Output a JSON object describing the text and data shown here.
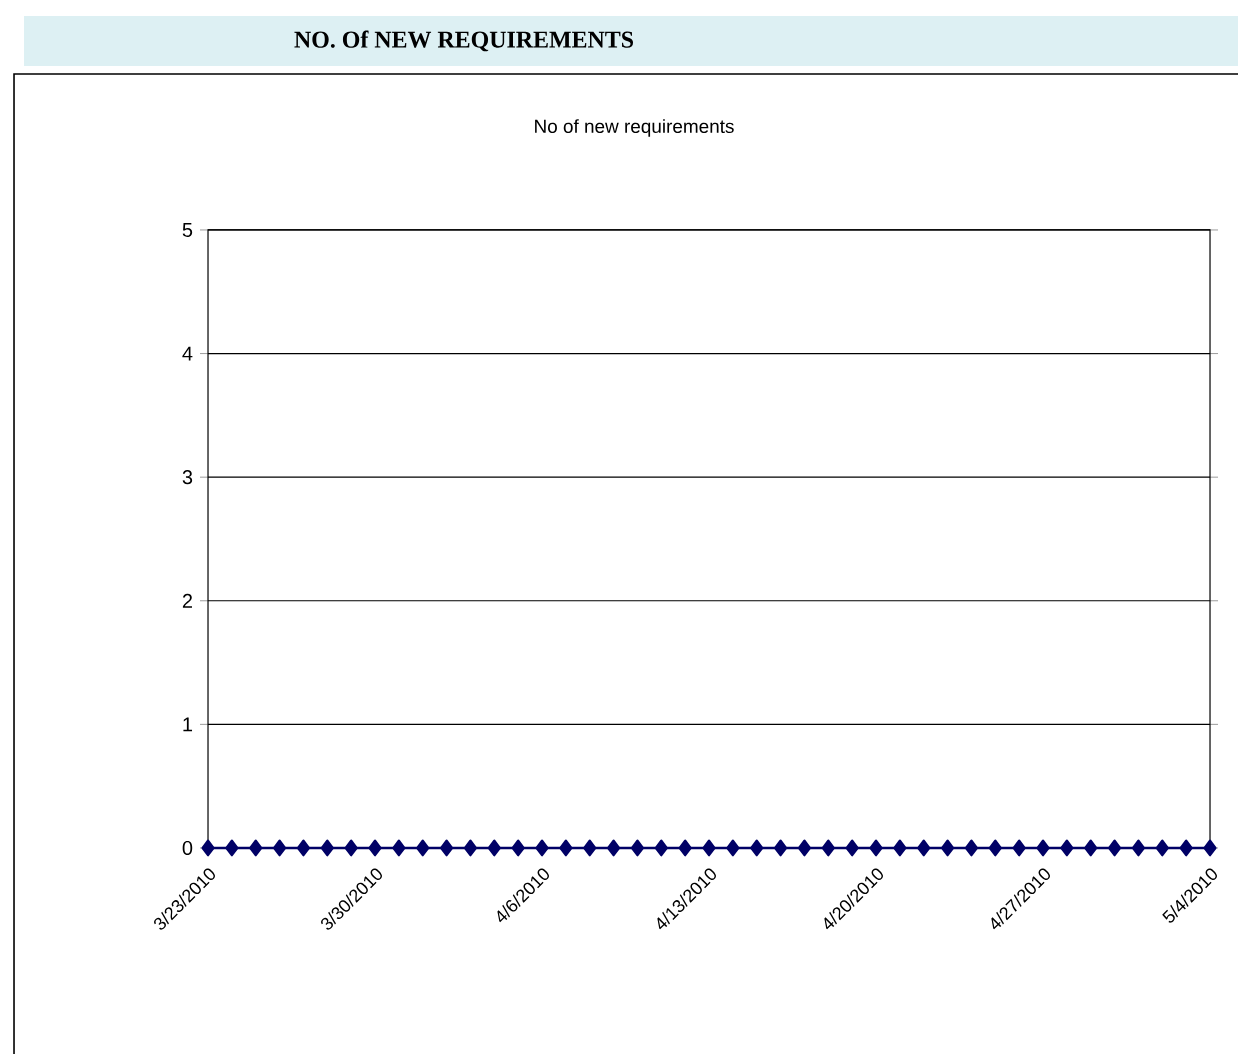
{
  "chart_data": {
    "type": "line",
    "title": "NO. Of NEW REQUIREMENTS",
    "subtitle": "No of new requirements",
    "x": [
      "2010-03-23",
      "2010-03-24",
      "2010-03-25",
      "2010-03-26",
      "2010-03-27",
      "2010-03-28",
      "2010-03-29",
      "2010-03-30",
      "2010-03-31",
      "2010-04-01",
      "2010-04-02",
      "2010-04-03",
      "2010-04-04",
      "2010-04-05",
      "2010-04-06",
      "2010-04-07",
      "2010-04-08",
      "2010-04-09",
      "2010-04-10",
      "2010-04-11",
      "2010-04-12",
      "2010-04-13",
      "2010-04-14",
      "2010-04-15",
      "2010-04-16",
      "2010-04-17",
      "2010-04-18",
      "2010-04-19",
      "2010-04-20",
      "2010-04-21",
      "2010-04-22",
      "2010-04-23",
      "2010-04-24",
      "2010-04-25",
      "2010-04-26",
      "2010-04-27",
      "2010-04-28",
      "2010-04-29",
      "2010-04-30",
      "2010-05-01",
      "2010-05-02",
      "2010-05-03",
      "2010-05-04"
    ],
    "series": [
      {
        "color": "#000066",
        "values": [
          0,
          0,
          0,
          0,
          0,
          0,
          0,
          0,
          0,
          0,
          0,
          0,
          0,
          0,
          0,
          0,
          0,
          0,
          0,
          0,
          0,
          0,
          0,
          0,
          0,
          0,
          0,
          0,
          0,
          0,
          0,
          0,
          0,
          0,
          0,
          0,
          0,
          0,
          0,
          0,
          0,
          0,
          0
        ]
      }
    ],
    "xlim": [
      "2010-03-23",
      "2010-05-04"
    ],
    "xticks": [
      {
        "value": "2010-03-23",
        "label": "3/23/2010"
      },
      {
        "value": "2010-03-30",
        "label": "3/30/2010"
      },
      {
        "value": "2010-04-06",
        "label": "4/6/2010"
      },
      {
        "value": "2010-04-13",
        "label": "4/13/2010"
      },
      {
        "value": "2010-04-20",
        "label": "4/20/2010"
      },
      {
        "value": "2010-04-27",
        "label": "4/27/2010"
      },
      {
        "value": "2010-05-04",
        "label": "5/4/2010"
      }
    ],
    "ylim": [
      0,
      5
    ],
    "yticks": [
      0,
      1,
      2,
      3,
      4,
      5
    ],
    "grid": "y",
    "marker": "diamond",
    "line_style": "solid"
  }
}
